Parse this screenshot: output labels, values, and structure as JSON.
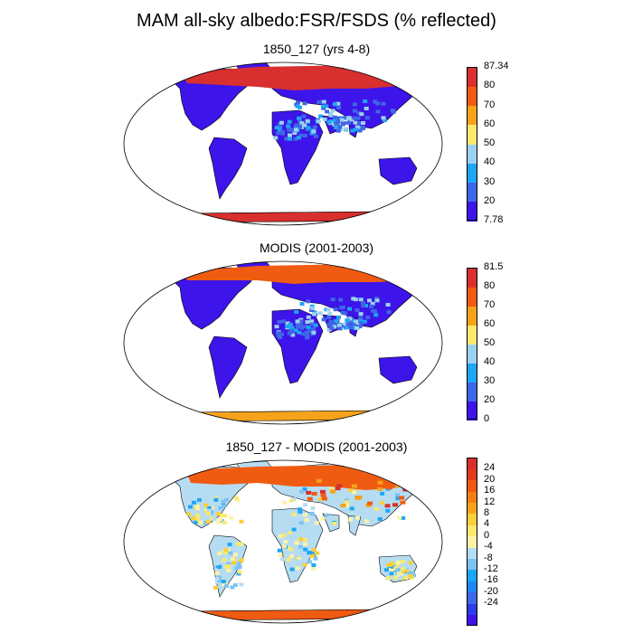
{
  "title": "MAM all-sky albedo:FSR/FSDS (% reflected)",
  "colors": {
    "land_base": "#3d14e9",
    "ocean": "#ffffff",
    "outline": "#000000"
  },
  "panels": [
    {
      "id": "model",
      "title": "1850_127 (yrs 4-8)",
      "colorbar": {
        "colors": [
          "#3d14e9",
          "#3f66e6",
          "#1ea6f5",
          "#9bd1f0",
          "#f9ea6e",
          "#f6a31c",
          "#f05b12",
          "#d7302e"
        ],
        "labels": [
          "87.34",
          "80",
          "70",
          "60",
          "50",
          "40",
          "30",
          "20",
          "7.78"
        ]
      }
    },
    {
      "id": "obs",
      "title": "MODIS (2001-2003)",
      "colorbar": {
        "colors": [
          "#3d14e9",
          "#3f66e6",
          "#1ea6f5",
          "#9bd1f0",
          "#f9ea6e",
          "#f6a31c",
          "#f05b12",
          "#d7302e"
        ],
        "labels": [
          "81.5",
          "80",
          "70",
          "60",
          "50",
          "40",
          "30",
          "20",
          "0"
        ]
      }
    },
    {
      "id": "diff",
      "title": "1850_127 - MODIS (2001-2003)",
      "colorbar": {
        "colors": [
          "#3d14e9",
          "#2d3ee8",
          "#3f66e6",
          "#1e86f0",
          "#1ea6f5",
          "#7dc2f0",
          "#b6dcf2",
          "#fdf3a6",
          "#f9ea6e",
          "#f8cf3c",
          "#f6a31c",
          "#f47e16",
          "#f05b12",
          "#e23a1c",
          "#d7302e"
        ],
        "labels": [
          "24",
          "20",
          "16",
          "12",
          "8",
          "4",
          "0",
          "-4",
          "-8",
          "-12",
          "-16",
          "-20",
          "-24"
        ]
      }
    }
  ]
}
